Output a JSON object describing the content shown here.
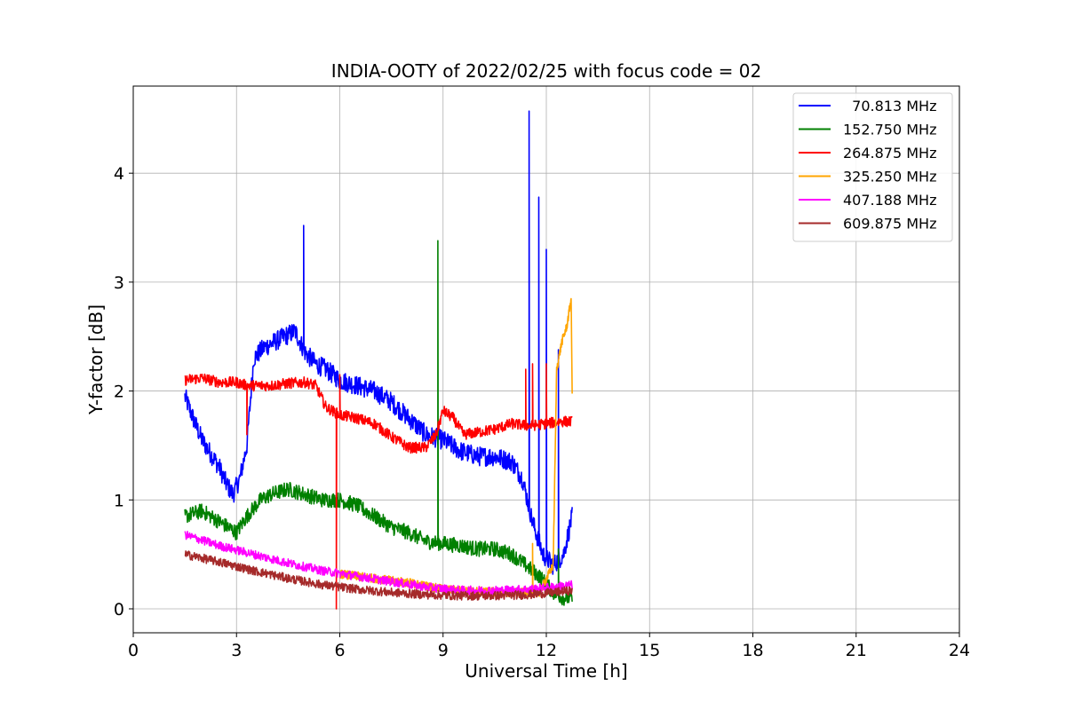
{
  "chart_data": {
    "type": "line",
    "title": "INDIA-OOTY of 2022/02/25 with focus code = 02",
    "xlabel": "Universal Time [h]",
    "ylabel": "Y-factor [dB]",
    "xlim": [
      0,
      24
    ],
    "ylim": [
      -0.22,
      4.8
    ],
    "xticks": [
      0,
      3,
      6,
      9,
      12,
      15,
      18,
      21,
      24
    ],
    "xtick_labels": [
      "0",
      "3",
      "6",
      "9",
      "12",
      "15",
      "18",
      "21",
      "24"
    ],
    "yticks": [
      0,
      1,
      2,
      3,
      4
    ],
    "ytick_labels": [
      "0",
      "1",
      "2",
      "3",
      "4"
    ],
    "grid": true,
    "legend_position": "top-right",
    "series": [
      {
        "name": "  70.813 MHz",
        "color": "#0000ff",
        "noise": 0.09,
        "points": [
          [
            1.5,
            1.95
          ],
          [
            1.8,
            1.7
          ],
          [
            2.0,
            1.55
          ],
          [
            2.3,
            1.4
          ],
          [
            2.5,
            1.3
          ],
          [
            2.7,
            1.15
          ],
          [
            2.9,
            1.05
          ],
          [
            3.1,
            1.2
          ],
          [
            3.3,
            1.5
          ],
          [
            3.5,
            2.3
          ],
          [
            3.8,
            2.4
          ],
          [
            4.1,
            2.45
          ],
          [
            4.4,
            2.5
          ],
          [
            4.7,
            2.55
          ],
          [
            5.0,
            2.35
          ],
          [
            5.3,
            2.25
          ],
          [
            5.6,
            2.2
          ],
          [
            6.0,
            2.1
          ],
          [
            6.5,
            2.05
          ],
          [
            7.0,
            2.0
          ],
          [
            7.5,
            1.9
          ],
          [
            8.0,
            1.75
          ],
          [
            8.5,
            1.6
          ],
          [
            9.0,
            1.55
          ],
          [
            9.5,
            1.45
          ],
          [
            10.0,
            1.4
          ],
          [
            10.5,
            1.4
          ],
          [
            11.0,
            1.35
          ],
          [
            11.3,
            1.2
          ],
          [
            11.6,
            0.8
          ],
          [
            11.9,
            0.5
          ],
          [
            12.2,
            0.4
          ],
          [
            12.5,
            0.5
          ],
          [
            12.75,
            0.85
          ]
        ],
        "spikes": [
          [
            4.95,
            3.52
          ],
          [
            11.5,
            4.57
          ],
          [
            11.78,
            3.78
          ],
          [
            12.0,
            3.3
          ],
          [
            12.35,
            2.38
          ]
        ]
      },
      {
        "name": "152.750 MHz",
        "color": "#008000",
        "noise": 0.07,
        "points": [
          [
            1.5,
            0.85
          ],
          [
            2.0,
            0.9
          ],
          [
            2.5,
            0.8
          ],
          [
            3.0,
            0.7
          ],
          [
            3.3,
            0.85
          ],
          [
            3.7,
            1.0
          ],
          [
            4.0,
            1.05
          ],
          [
            4.5,
            1.1
          ],
          [
            5.0,
            1.05
          ],
          [
            5.5,
            1.0
          ],
          [
            6.0,
            1.0
          ],
          [
            6.5,
            0.95
          ],
          [
            7.0,
            0.85
          ],
          [
            7.5,
            0.75
          ],
          [
            8.0,
            0.7
          ],
          [
            8.5,
            0.62
          ],
          [
            9.0,
            0.6
          ],
          [
            9.5,
            0.58
          ],
          [
            10.0,
            0.55
          ],
          [
            10.5,
            0.55
          ],
          [
            11.0,
            0.5
          ],
          [
            11.4,
            0.4
          ],
          [
            11.8,
            0.3
          ],
          [
            12.2,
            0.15
          ],
          [
            12.5,
            0.1
          ],
          [
            12.75,
            0.1
          ]
        ],
        "spikes": [
          [
            8.85,
            3.38
          ],
          [
            12.35,
            0.55
          ]
        ]
      },
      {
        "name": "264.875 MHz",
        "color": "#ff0000",
        "noise": 0.05,
        "points": [
          [
            1.5,
            2.1
          ],
          [
            2.0,
            2.12
          ],
          [
            2.5,
            2.08
          ],
          [
            3.0,
            2.08
          ],
          [
            3.3,
            2.05
          ],
          [
            3.6,
            2.05
          ],
          [
            4.0,
            2.05
          ],
          [
            4.5,
            2.07
          ],
          [
            5.0,
            2.08
          ],
          [
            5.3,
            2.05
          ],
          [
            5.6,
            1.85
          ],
          [
            6.0,
            1.78
          ],
          [
            6.5,
            1.75
          ],
          [
            7.0,
            1.7
          ],
          [
            7.5,
            1.58
          ],
          [
            8.0,
            1.48
          ],
          [
            8.5,
            1.48
          ],
          [
            8.8,
            1.6
          ],
          [
            9.0,
            1.82
          ],
          [
            9.3,
            1.75
          ],
          [
            9.6,
            1.6
          ],
          [
            10.0,
            1.62
          ],
          [
            10.5,
            1.65
          ],
          [
            11.0,
            1.7
          ],
          [
            11.5,
            1.68
          ],
          [
            12.0,
            1.7
          ],
          [
            12.4,
            1.72
          ],
          [
            12.75,
            1.72
          ]
        ],
        "spikes": [
          [
            3.3,
            1.6
          ],
          [
            5.9,
            0.0
          ],
          [
            6.0,
            2.15
          ],
          [
            11.4,
            2.2
          ],
          [
            11.6,
            2.25
          ],
          [
            12.0,
            2.25
          ]
        ]
      },
      {
        "name": "325.250 MHz",
        "color": "#ffa500",
        "noise": 0.04,
        "points": [
          [
            6.0,
            0.32
          ],
          [
            7.0,
            0.28
          ],
          [
            8.0,
            0.24
          ],
          [
            9.0,
            0.18
          ],
          [
            10.0,
            0.16
          ],
          [
            11.0,
            0.15
          ],
          [
            11.8,
            0.15
          ],
          [
            12.2,
            0.4
          ],
          [
            12.3,
            2.2
          ],
          [
            12.45,
            2.45
          ],
          [
            12.6,
            2.6
          ],
          [
            12.72,
            2.85
          ],
          [
            12.75,
            2.0
          ]
        ],
        "spikes": [
          [
            11.6,
            0.6
          ]
        ]
      },
      {
        "name": "407.188 MHz",
        "color": "#ff00ff",
        "noise": 0.04,
        "points": [
          [
            1.5,
            0.68
          ],
          [
            2.5,
            0.58
          ],
          [
            3.5,
            0.5
          ],
          [
            4.5,
            0.42
          ],
          [
            5.5,
            0.35
          ],
          [
            6.5,
            0.3
          ],
          [
            7.5,
            0.25
          ],
          [
            8.5,
            0.2
          ],
          [
            9.5,
            0.17
          ],
          [
            10.5,
            0.17
          ],
          [
            11.5,
            0.18
          ],
          [
            12.2,
            0.2
          ],
          [
            12.75,
            0.22
          ]
        ],
        "spikes": []
      },
      {
        "name": "609.875 MHz",
        "color": "#a52a2a",
        "noise": 0.04,
        "points": [
          [
            1.5,
            0.5
          ],
          [
            2.5,
            0.43
          ],
          [
            3.5,
            0.35
          ],
          [
            4.5,
            0.28
          ],
          [
            5.5,
            0.22
          ],
          [
            6.5,
            0.18
          ],
          [
            7.5,
            0.15
          ],
          [
            8.5,
            0.13
          ],
          [
            9.5,
            0.12
          ],
          [
            10.5,
            0.12
          ],
          [
            11.5,
            0.13
          ],
          [
            12.2,
            0.15
          ],
          [
            12.75,
            0.17
          ]
        ],
        "spikes": []
      }
    ]
  }
}
